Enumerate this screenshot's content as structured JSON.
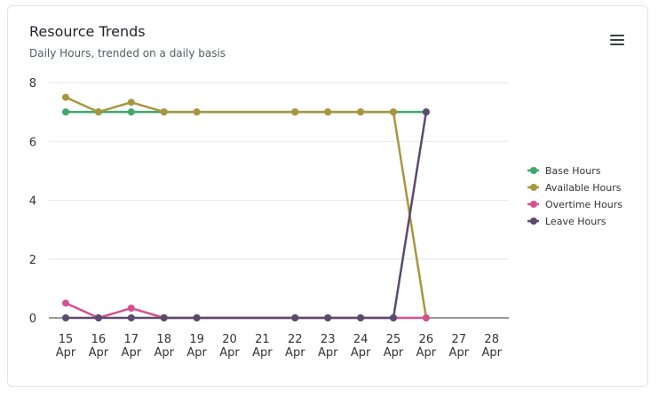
{
  "header": {
    "title": "Resource Trends",
    "subtitle": "Daily Hours, trended on a daily basis"
  },
  "icons": {
    "menu": "hamburger-menu-icon"
  },
  "chart_data": {
    "type": "line",
    "title": "Resource Trends",
    "subtitle": "Daily Hours, trended on a daily basis",
    "categories": [
      "15 Apr",
      "16 Apr",
      "17 Apr",
      "18 Apr",
      "19 Apr",
      "20 Apr",
      "21 Apr",
      "22 Apr",
      "23 Apr",
      "24 Apr",
      "25 Apr",
      "26 Apr",
      "27 Apr",
      "28 Apr"
    ],
    "x_tick_lines": [
      [
        "15",
        "Apr"
      ],
      [
        "16",
        "Apr"
      ],
      [
        "17",
        "Apr"
      ],
      [
        "18",
        "Apr"
      ],
      [
        "19",
        "Apr"
      ],
      [
        "20",
        "Apr"
      ],
      [
        "21",
        "Apr"
      ],
      [
        "22",
        "Apr"
      ],
      [
        "23",
        "Apr"
      ],
      [
        "24",
        "Apr"
      ],
      [
        "25",
        "Apr"
      ],
      [
        "26",
        "Apr"
      ],
      [
        "27",
        "Apr"
      ],
      [
        "28",
        "Apr"
      ]
    ],
    "y_ticks": [
      "0",
      "2",
      "4",
      "6",
      "8"
    ],
    "ylim": [
      0,
      8
    ],
    "grid": true,
    "legend_position": "right",
    "series": [
      {
        "name": "Base Hours",
        "color": "#3fa86b",
        "values": [
          7,
          7,
          7,
          7,
          7,
          null,
          null,
          7,
          7,
          7,
          7,
          7,
          null,
          null
        ]
      },
      {
        "name": "Available Hours",
        "color": "#a8963f",
        "values": [
          7.5,
          7,
          7.33,
          7,
          7,
          null,
          null,
          7,
          7,
          7,
          7,
          0,
          null,
          null
        ]
      },
      {
        "name": "Overtime Hours",
        "color": "#d6508f",
        "values": [
          0.5,
          0,
          0.33,
          0,
          0,
          null,
          null,
          0,
          0,
          0,
          0,
          0,
          null,
          null
        ]
      },
      {
        "name": "Leave Hours",
        "color": "#5b4a6e",
        "values": [
          0,
          0,
          0,
          0,
          0,
          null,
          null,
          0,
          0,
          0,
          0,
          7,
          null,
          null
        ]
      }
    ]
  }
}
